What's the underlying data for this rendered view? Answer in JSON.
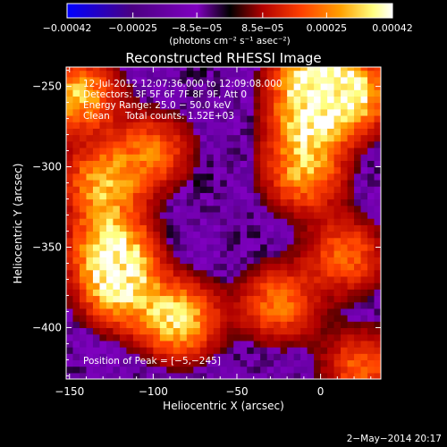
{
  "chart_data": {
    "type": "heatmap",
    "title": "Reconstructed RHESSI Image",
    "xlabel": "Heliocentric X (arcsec)",
    "ylabel": "Heliocentric Y (arcsec)",
    "xlim": [
      -152,
      36
    ],
    "ylim": [
      -432,
      -238
    ],
    "x_ticks": [
      -150,
      -100,
      -50,
      0
    ],
    "x_tick_labels": [
      "−150",
      "−100",
      "−50",
      "0"
    ],
    "y_ticks": [
      -250,
      -300,
      -350,
      -400
    ],
    "y_tick_labels": [
      "−250",
      "−300",
      "−350",
      "−400"
    ],
    "colorbar": {
      "range": [
        -0.00042,
        0.00042
      ],
      "ticks": [
        -0.00042,
        -0.00025,
        -8.5e-05,
        8.5e-05,
        0.00025,
        0.00042
      ],
      "tick_labels": [
        "−0.00042",
        "−0.00025",
        "−8.5e−05",
        "8.5e−05",
        "0.00025",
        "0.00042"
      ],
      "unit_label": "(photons cm⁻² s⁻¹ asec⁻²)",
      "colors": [
        "#0000ff",
        "#4b0082",
        "#8000c0",
        "#000000",
        "#b00000",
        "#ff4000",
        "#ffa000",
        "#ffff80",
        "#ffffff"
      ]
    },
    "annotations": {
      "time_range": "12-Jul-2012 12:07:36.000 to 12:09:08.000",
      "detectors": "Detectors: 3F 5F 6F 7F 8F 9F, Att 0",
      "energy_range": "Energy Range: 25.0 − 50.0 keV",
      "method": "Clean",
      "total_counts": "Total counts: 1.52E+03",
      "peak_position": "Position of Peak = [−5,−245]"
    },
    "footer_date": "2−May−2014 20:17",
    "bright_regions_arcsec": [
      {
        "x": -145,
        "y": -255,
        "level": 0.8
      },
      {
        "x": -130,
        "y": -310,
        "level": 0.75
      },
      {
        "x": -125,
        "y": -350,
        "level": 0.9
      },
      {
        "x": -120,
        "y": -375,
        "level": 0.85
      },
      {
        "x": -85,
        "y": -395,
        "level": 0.9
      },
      {
        "x": -100,
        "y": -290,
        "level": 0.55
      },
      {
        "x": -5,
        "y": -245,
        "level": 1.0
      },
      {
        "x": 20,
        "y": -255,
        "level": 0.85
      },
      {
        "x": -8,
        "y": -275,
        "level": 0.7
      },
      {
        "x": -10,
        "y": -305,
        "level": 0.65
      },
      {
        "x": 15,
        "y": -355,
        "level": 0.55
      },
      {
        "x": -25,
        "y": -385,
        "level": 0.6
      },
      {
        "x": 25,
        "y": -425,
        "level": 0.55
      }
    ]
  }
}
